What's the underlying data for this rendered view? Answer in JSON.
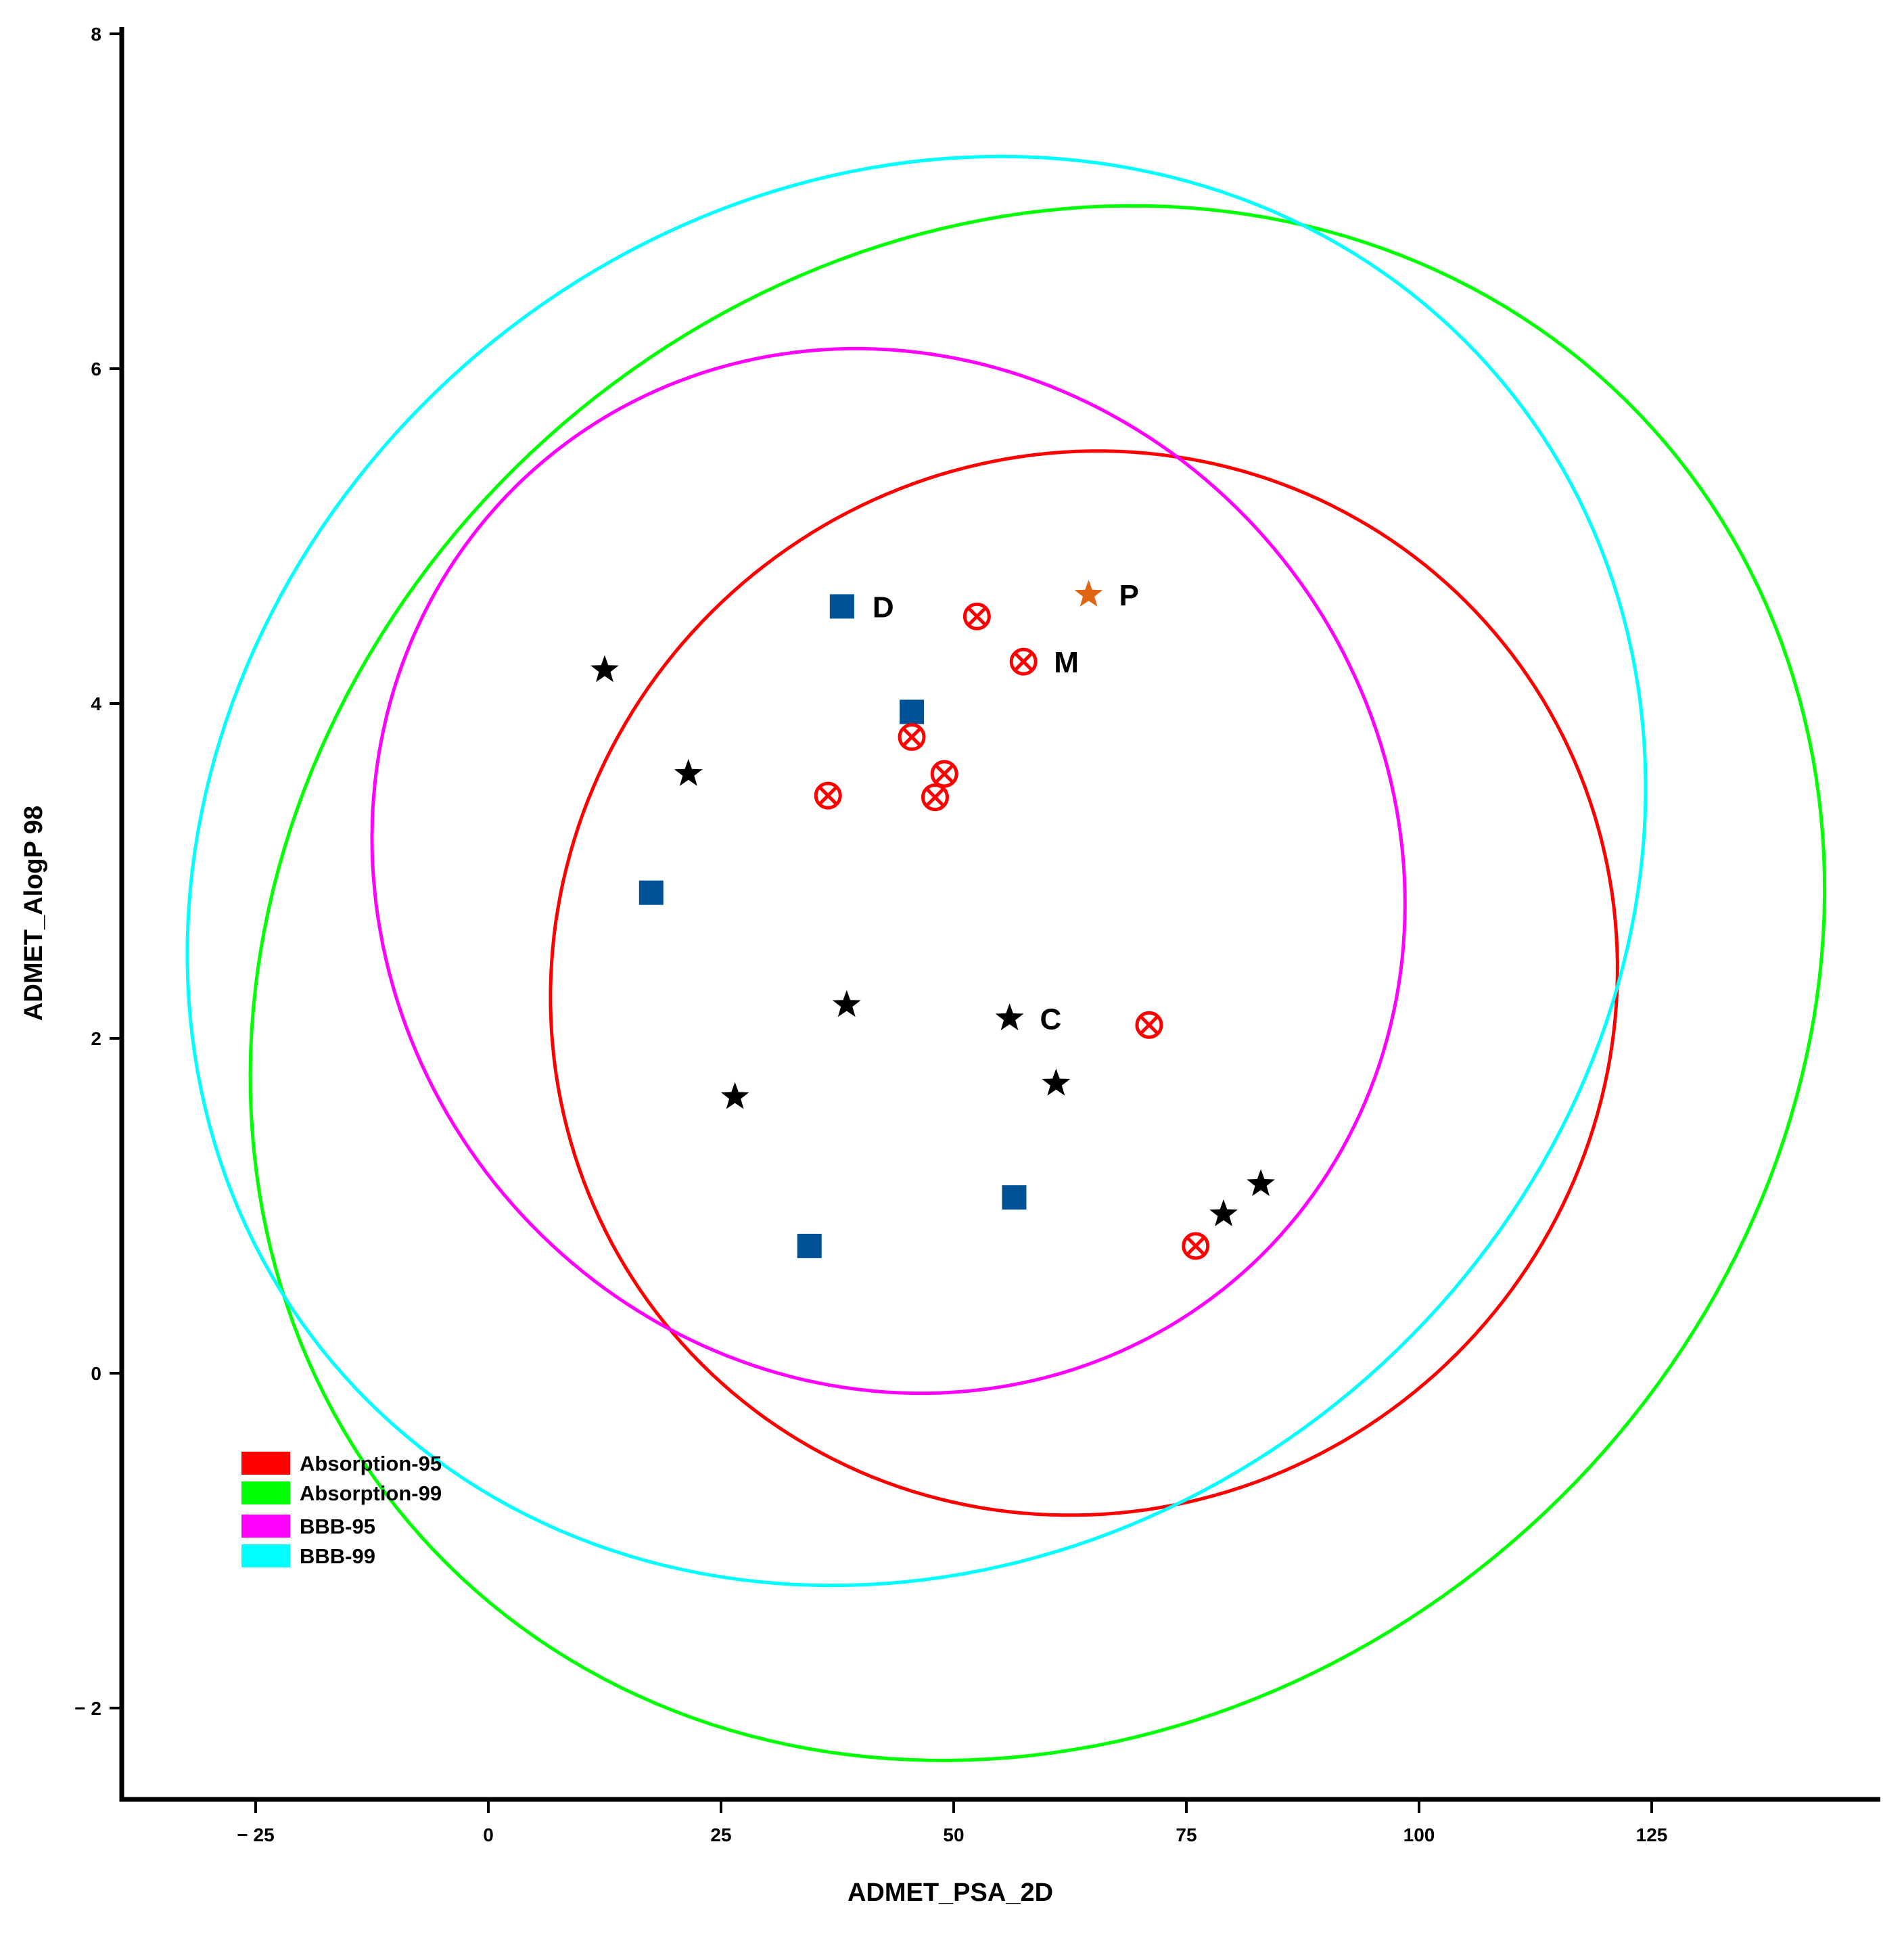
{
  "chart_data": {
    "type": "scatter",
    "title": "",
    "xlabel": "ADMET_PSA_2D",
    "ylabel": "ADMET_AlogP 98",
    "xlim": [
      -40,
      150
    ],
    "ylim": [
      -2.5,
      8
    ],
    "xticks": [
      -25,
      0,
      25,
      50,
      75,
      100,
      125
    ],
    "xtick_labels": [
      "− 25",
      "0",
      "25",
      "50",
      "75",
      "100",
      "125"
    ],
    "yticks": [
      -2,
      0,
      2,
      4,
      6,
      8
    ],
    "ytick_labels": [
      "− 2",
      "0",
      "2",
      "4",
      "6",
      "8"
    ],
    "grid": false,
    "legend_position": "bottom-left",
    "ellipses": [
      {
        "name": "Absorption-95",
        "color": "#ff0000",
        "cx": 64,
        "cy": 2.33,
        "rx": 58,
        "ry": 3.14,
        "rotation_deg": -42
      },
      {
        "name": "Absorption-99",
        "color": "#00ff00",
        "cx": 59,
        "cy": 2.33,
        "rx": 89,
        "ry": 4.38,
        "rotation_deg": -42
      },
      {
        "name": "BBB-95",
        "color": "#ff00ff",
        "cx": 43,
        "cy": 3.0,
        "rx": 54,
        "ry": 3.2,
        "rotation_deg": -40
      },
      {
        "name": "BBB-99",
        "color": "#00ffff",
        "cx": 46,
        "cy": 3.0,
        "rx": 82,
        "ry": 4.05,
        "rotation_deg": -40
      }
    ],
    "series": [
      {
        "name": "black-stars",
        "marker": "star",
        "color": "#000000",
        "points": [
          {
            "x": 12.5,
            "y": 4.2
          },
          {
            "x": 21.5,
            "y": 3.58
          },
          {
            "x": 38.5,
            "y": 2.2
          },
          {
            "x": 26.5,
            "y": 1.65
          },
          {
            "x": 56,
            "y": 2.12,
            "label": "C"
          },
          {
            "x": 61,
            "y": 1.73
          },
          {
            "x": 83,
            "y": 1.13
          },
          {
            "x": 79,
            "y": 0.95
          }
        ]
      },
      {
        "name": "blue-squares",
        "marker": "square",
        "color": "#005296",
        "points": [
          {
            "x": 38,
            "y": 4.58,
            "label": "D"
          },
          {
            "x": 45.5,
            "y": 3.95
          },
          {
            "x": 17.5,
            "y": 2.87
          },
          {
            "x": 56.5,
            "y": 1.05
          },
          {
            "x": 34.5,
            "y": 0.76
          }
        ]
      },
      {
        "name": "red-crossed-circles",
        "marker": "crossed-circle",
        "color": "#ff0000",
        "points": [
          {
            "x": 52.5,
            "y": 4.52
          },
          {
            "x": 57.5,
            "y": 4.25,
            "label": "M"
          },
          {
            "x": 45.5,
            "y": 3.8
          },
          {
            "x": 49,
            "y": 3.58
          },
          {
            "x": 36.5,
            "y": 3.45
          },
          {
            "x": 48,
            "y": 3.44
          },
          {
            "x": 71,
            "y": 2.08
          },
          {
            "x": 76,
            "y": 0.76
          }
        ]
      },
      {
        "name": "orange-star",
        "marker": "star",
        "color": "#e06414",
        "points": [
          {
            "x": 64.5,
            "y": 4.65,
            "label": "P"
          }
        ]
      }
    ]
  }
}
